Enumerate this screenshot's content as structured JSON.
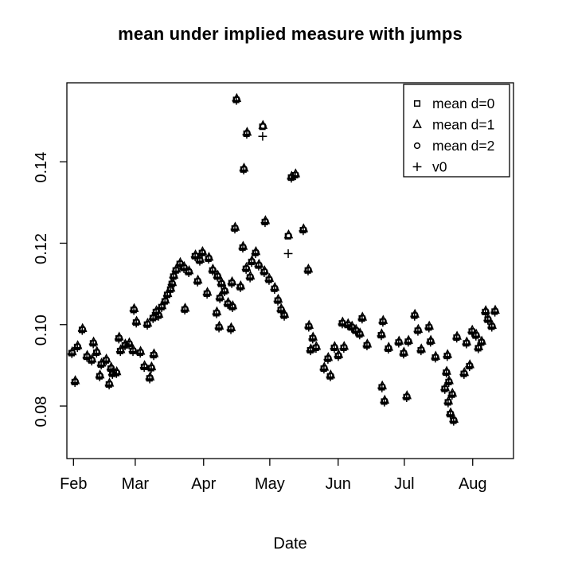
{
  "chart_data": {
    "type": "scatter",
    "title": "mean under implied measure with jumps",
    "xlabel": "Date",
    "x_axis": {
      "tick_labels": [
        "Feb",
        "Mar",
        "Apr",
        "May",
        "Jun",
        "Jul",
        "Aug"
      ],
      "tick_t": [
        0,
        28,
        59,
        89,
        120,
        150,
        181
      ],
      "t_unit": "days since Feb 1",
      "xlim": [
        -3.0,
        199.5
      ]
    },
    "y_axis": {
      "tick_labels": [
        "0.08",
        "0.10",
        "0.12",
        "0.14"
      ],
      "tick_values": [
        0.08,
        0.1,
        0.12,
        0.14
      ],
      "ylim": [
        0.0671,
        0.1594
      ]
    },
    "legend": [
      {
        "label": "mean d=0",
        "marker": "square"
      },
      {
        "label": "mean d=1",
        "marker": "triangle"
      },
      {
        "label": "mean d=2",
        "marker": "circle"
      },
      {
        "label": "v0",
        "marker": "plus"
      }
    ],
    "note": "Four series plotted at visually coincident values; points list [t, common mean]. v0_deviations lists [t, v0] where v0 visibly differs.",
    "colors": {
      "foreground": "#000000",
      "background": "#ffffff"
    },
    "points": [
      [
        -0.7,
        0.0931
      ],
      [
        0.7,
        0.086
      ],
      [
        1.8,
        0.0946
      ],
      [
        4.0,
        0.0988
      ],
      [
        6.1,
        0.0922
      ],
      [
        8.3,
        0.0913
      ],
      [
        9.0,
        0.0955
      ],
      [
        10.5,
        0.0932
      ],
      [
        11.9,
        0.0874
      ],
      [
        12.6,
        0.0903
      ],
      [
        14.8,
        0.0913
      ],
      [
        16.2,
        0.0854
      ],
      [
        17.0,
        0.0893
      ],
      [
        17.7,
        0.088
      ],
      [
        19.5,
        0.0882
      ],
      [
        20.6,
        0.0967
      ],
      [
        21.3,
        0.0936
      ],
      [
        23.4,
        0.095
      ],
      [
        25.2,
        0.0953
      ],
      [
        27.0,
        0.0936
      ],
      [
        27.4,
        0.1037
      ],
      [
        28.5,
        0.1006
      ],
      [
        30.3,
        0.0932
      ],
      [
        32.1,
        0.0897
      ],
      [
        33.5,
        0.1001
      ],
      [
        34.6,
        0.0869
      ],
      [
        35.3,
        0.0894
      ],
      [
        36.4,
        0.0926
      ],
      [
        36.1,
        0.1017
      ],
      [
        37.5,
        0.1032
      ],
      [
        38.6,
        0.1023
      ],
      [
        40.0,
        0.1044
      ],
      [
        41.5,
        0.1058
      ],
      [
        42.6,
        0.1074
      ],
      [
        44.0,
        0.1087
      ],
      [
        44.7,
        0.1101
      ],
      [
        45.4,
        0.1119
      ],
      [
        46.5,
        0.1134
      ],
      [
        48.3,
        0.115
      ],
      [
        50.1,
        0.114
      ],
      [
        50.5,
        0.1038
      ],
      [
        52.3,
        0.113
      ],
      [
        55.2,
        0.1169
      ],
      [
        56.3,
        0.1107
      ],
      [
        57.3,
        0.1158
      ],
      [
        58.4,
        0.1177
      ],
      [
        60.6,
        0.1077
      ],
      [
        61.3,
        0.1163
      ],
      [
        63.1,
        0.1134
      ],
      [
        64.9,
        0.1029
      ],
      [
        65.3,
        0.1119
      ],
      [
        66.0,
        0.0994
      ],
      [
        66.4,
        0.1066
      ],
      [
        67.1,
        0.1101
      ],
      [
        68.5,
        0.1083
      ],
      [
        70.0,
        0.1052
      ],
      [
        71.4,
        0.099
      ],
      [
        72.1,
        0.1044
      ],
      [
        71.8,
        0.1103
      ],
      [
        73.2,
        0.1237
      ],
      [
        73.9,
        0.1553
      ],
      [
        75.7,
        0.1093
      ],
      [
        77.2,
        0.1382
      ],
      [
        78.6,
        0.147
      ],
      [
        78.3,
        0.1138
      ],
      [
        80.1,
        0.1117
      ],
      [
        76.8,
        0.119
      ],
      [
        80.8,
        0.1155
      ],
      [
        82.6,
        0.1177
      ],
      [
        84.0,
        0.1146
      ],
      [
        85.8,
        0.1487
      ],
      [
        86.5,
        0.113
      ],
      [
        86.9,
        0.1253
      ],
      [
        88.7,
        0.1111
      ],
      [
        91.2,
        0.1089
      ],
      [
        92.7,
        0.106
      ],
      [
        94.1,
        0.1037
      ],
      [
        95.6,
        0.1023
      ],
      [
        97.4,
        0.1218
      ],
      [
        98.8,
        0.1362
      ],
      [
        100.6,
        0.1368
      ],
      [
        104.2,
        0.1233
      ],
      [
        106.4,
        0.1134
      ],
      [
        106.7,
        0.0996
      ],
      [
        107.5,
        0.0938
      ],
      [
        108.5,
        0.0967
      ],
      [
        110.0,
        0.0944
      ],
      [
        113.6,
        0.0893
      ],
      [
        115.4,
        0.0917
      ],
      [
        116.5,
        0.0874
      ],
      [
        118.3,
        0.0944
      ],
      [
        120.1,
        0.0924
      ],
      [
        121.9,
        0.1004
      ],
      [
        122.6,
        0.0944
      ],
      [
        124.4,
        0.1
      ],
      [
        126.2,
        0.0994
      ],
      [
        128.0,
        0.0986
      ],
      [
        129.8,
        0.0977
      ],
      [
        130.9,
        0.1016
      ],
      [
        133.1,
        0.095
      ],
      [
        139.6,
        0.0975
      ],
      [
        140.3,
        0.1008
      ],
      [
        139.9,
        0.0847
      ],
      [
        141.0,
        0.0812
      ],
      [
        142.8,
        0.0942
      ],
      [
        147.5,
        0.0957
      ],
      [
        149.7,
        0.093
      ],
      [
        151.1,
        0.0823
      ],
      [
        151.8,
        0.0959
      ],
      [
        154.7,
        0.1023
      ],
      [
        156.2,
        0.0986
      ],
      [
        157.6,
        0.0938
      ],
      [
        161.2,
        0.0994
      ],
      [
        161.9,
        0.0959
      ],
      [
        164.1,
        0.092
      ],
      [
        168.4,
        0.0843
      ],
      [
        169.1,
        0.0883
      ],
      [
        169.5,
        0.0924
      ],
      [
        169.9,
        0.081
      ],
      [
        170.2,
        0.086
      ],
      [
        170.9,
        0.0781
      ],
      [
        171.7,
        0.0829
      ],
      [
        172.4,
        0.0765
      ],
      [
        173.8,
        0.0969
      ],
      [
        177.1,
        0.088
      ],
      [
        178.2,
        0.0955
      ],
      [
        179.6,
        0.0899
      ],
      [
        180.7,
        0.0984
      ],
      [
        182.5,
        0.0974
      ],
      [
        183.6,
        0.0943
      ],
      [
        185.0,
        0.0957
      ],
      [
        186.8,
        0.1032
      ],
      [
        187.9,
        0.1013
      ],
      [
        189.7,
        0.0996
      ],
      [
        191.1,
        0.1033
      ]
    ],
    "v0_deviations": [
      [
        85.8,
        0.1465
      ],
      [
        97.4,
        0.1177
      ]
    ]
  }
}
